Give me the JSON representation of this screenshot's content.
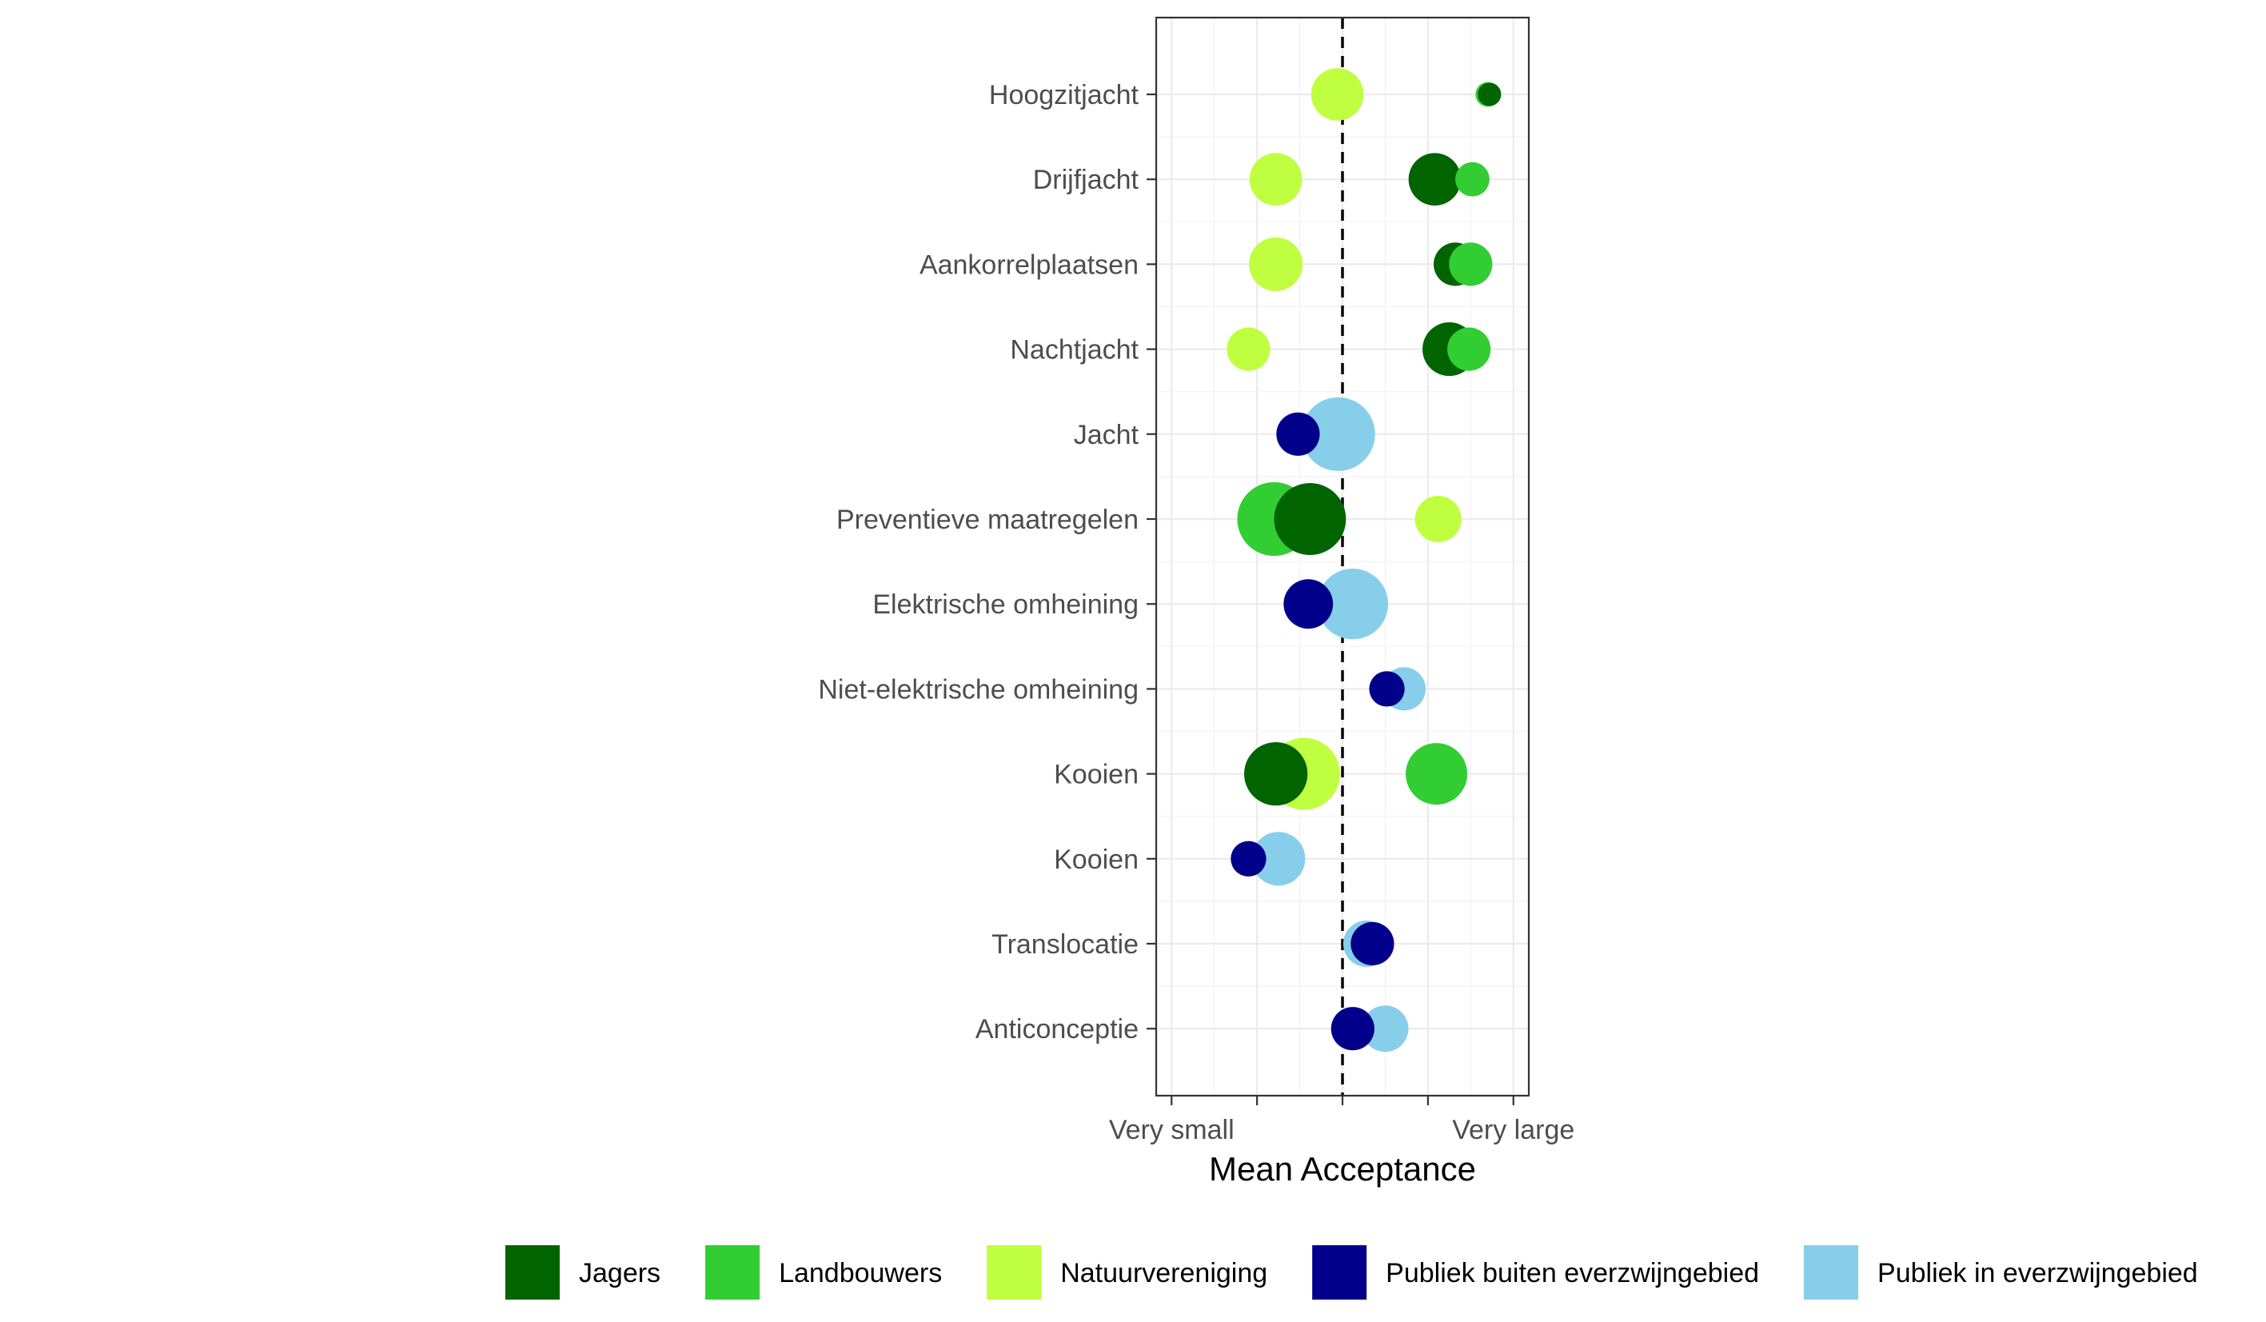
{
  "chart_data": {
    "type": "scatter",
    "title": "",
    "xlabel": "Mean Acceptance",
    "ylabel": "",
    "xlim": [
      0.82,
      5.18
    ],
    "x_ticks": [
      1,
      2,
      3,
      4,
      5
    ],
    "x_tick_labels": [
      "Very small",
      "",
      "",
      "",
      "Very large"
    ],
    "reference_line": {
      "x": 3,
      "style": "dashed"
    },
    "grid": true,
    "legend_position": "bottom",
    "categories": [
      "Hoogzitjacht",
      "Drijfjacht",
      "Aankorrelplaatsen",
      "Nachtjacht",
      "Jacht",
      "Preventieve maatregelen",
      "Elektrische omheining",
      "Niet-elektrische omheining",
      "Kooien",
      "Kooien",
      "Translocatie",
      "Anticonceptie"
    ],
    "series": [
      {
        "name": "Jagers",
        "color": "#006400",
        "points": [
          {
            "row": 0,
            "x": 4.72,
            "size": 0.12
          },
          {
            "row": 1,
            "x": 4.08,
            "size": 0.6
          },
          {
            "row": 2,
            "x": 4.32,
            "size": 0.45
          },
          {
            "row": 3,
            "x": 4.25,
            "size": 0.62
          },
          {
            "row": 5,
            "x": 2.62,
            "size": 0.92
          },
          {
            "row": 8,
            "x": 2.22,
            "size": 0.78
          }
        ]
      },
      {
        "name": "Landbouwers",
        "color": "#32CD32",
        "points": [
          {
            "row": 0,
            "x": 4.7,
            "size": 0.14
          },
          {
            "row": 1,
            "x": 4.52,
            "size": 0.3
          },
          {
            "row": 2,
            "x": 4.5,
            "size": 0.45
          },
          {
            "row": 3,
            "x": 4.48,
            "size": 0.45
          },
          {
            "row": 5,
            "x": 2.2,
            "size": 0.95
          },
          {
            "row": 8,
            "x": 4.1,
            "size": 0.75
          }
        ]
      },
      {
        "name": "Natuurvereniging",
        "color": "#BFFF3F",
        "points": [
          {
            "row": 0,
            "x": 2.94,
            "size": 0.6
          },
          {
            "row": 1,
            "x": 2.22,
            "size": 0.6
          },
          {
            "row": 2,
            "x": 2.22,
            "size": 0.62
          },
          {
            "row": 3,
            "x": 1.9,
            "size": 0.45
          },
          {
            "row": 5,
            "x": 4.12,
            "size": 0.5
          },
          {
            "row": 8,
            "x": 2.55,
            "size": 0.92
          }
        ]
      },
      {
        "name": "Publiek buiten everzwijngebied",
        "color": "#00008B",
        "points": [
          {
            "row": 4,
            "x": 2.48,
            "size": 0.45
          },
          {
            "row": 6,
            "x": 2.6,
            "size": 0.55
          },
          {
            "row": 7,
            "x": 3.52,
            "size": 0.32
          },
          {
            "row": 9,
            "x": 1.9,
            "size": 0.32
          },
          {
            "row": 10,
            "x": 3.35,
            "size": 0.45
          },
          {
            "row": 11,
            "x": 3.12,
            "size": 0.45
          }
        ]
      },
      {
        "name": "Publiek in everzwijngebied",
        "color": "#87CEEB",
        "points": [
          {
            "row": 4,
            "x": 2.95,
            "size": 0.95
          },
          {
            "row": 6,
            "x": 3.12,
            "size": 0.9
          },
          {
            "row": 7,
            "x": 3.72,
            "size": 0.45
          },
          {
            "row": 9,
            "x": 2.25,
            "size": 0.62
          },
          {
            "row": 10,
            "x": 3.28,
            "size": 0.5
          },
          {
            "row": 11,
            "x": 3.5,
            "size": 0.5
          }
        ]
      }
    ]
  }
}
